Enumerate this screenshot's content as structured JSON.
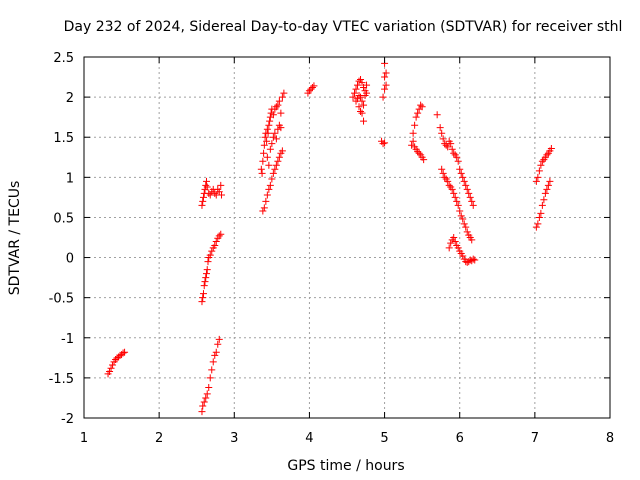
{
  "chart_data": {
    "type": "scatter",
    "title": "Day 232 of 2024, Sidereal Day-to-day VTEC variation (SDTVAR) for receiver sthl",
    "xlabel": "GPS time / hours",
    "ylabel": "SDTVAR / TECUs",
    "xlim": [
      1,
      8
    ],
    "ylim": [
      -2,
      2.5
    ],
    "xticks": [
      1,
      2,
      3,
      4,
      5,
      6,
      7,
      8
    ],
    "yticks": [
      -2,
      -1.5,
      -1,
      -0.5,
      0,
      0.5,
      1,
      1.5,
      2,
      2.5
    ],
    "ytick_labels": [
      "-2",
      "-1.5",
      "-1",
      "-0.5",
      "0",
      "0.5",
      "1",
      "1.5",
      "2",
      "2.5"
    ],
    "grid": true,
    "marker": "+",
    "color": "#ff0000",
    "series": [
      {
        "name": "sthl",
        "points": [
          [
            1.32,
            -1.45
          ],
          [
            1.34,
            -1.42
          ],
          [
            1.36,
            -1.38
          ],
          [
            1.38,
            -1.34
          ],
          [
            1.4,
            -1.3
          ],
          [
            1.42,
            -1.27
          ],
          [
            1.44,
            -1.25
          ],
          [
            1.46,
            -1.24
          ],
          [
            1.48,
            -1.22
          ],
          [
            1.5,
            -1.21
          ],
          [
            1.52,
            -1.19
          ],
          [
            1.54,
            -1.18
          ],
          [
            2.57,
            0.65
          ],
          [
            2.58,
            0.7
          ],
          [
            2.59,
            0.75
          ],
          [
            2.6,
            0.8
          ],
          [
            2.61,
            0.85
          ],
          [
            2.62,
            0.9
          ],
          [
            2.63,
            0.95
          ],
          [
            2.64,
            0.88
          ],
          [
            2.66,
            0.8
          ],
          [
            2.68,
            0.78
          ],
          [
            2.7,
            0.82
          ],
          [
            2.72,
            0.85
          ],
          [
            2.74,
            0.8
          ],
          [
            2.76,
            0.78
          ],
          [
            2.78,
            0.85
          ],
          [
            2.8,
            0.82
          ],
          [
            2.82,
            0.9
          ],
          [
            2.83,
            0.78
          ],
          [
            2.57,
            -0.55
          ],
          [
            2.58,
            -0.5
          ],
          [
            2.59,
            -0.45
          ],
          [
            2.6,
            -0.35
          ],
          [
            2.61,
            -0.3
          ],
          [
            2.62,
            -0.25
          ],
          [
            2.63,
            -0.2
          ],
          [
            2.64,
            -0.15
          ],
          [
            2.65,
            -0.05
          ],
          [
            2.66,
            0.0
          ],
          [
            2.68,
            0.03
          ],
          [
            2.7,
            0.08
          ],
          [
            2.72,
            0.12
          ],
          [
            2.74,
            0.15
          ],
          [
            2.76,
            0.2
          ],
          [
            2.78,
            0.24
          ],
          [
            2.8,
            0.27
          ],
          [
            2.82,
            0.29
          ],
          [
            2.57,
            -1.92
          ],
          [
            2.58,
            -1.85
          ],
          [
            2.6,
            -1.8
          ],
          [
            2.62,
            -1.75
          ],
          [
            2.64,
            -1.7
          ],
          [
            2.66,
            -1.62
          ],
          [
            2.68,
            -1.5
          ],
          [
            2.7,
            -1.4
          ],
          [
            2.72,
            -1.3
          ],
          [
            2.74,
            -1.22
          ],
          [
            2.76,
            -1.18
          ],
          [
            2.78,
            -1.08
          ],
          [
            2.8,
            -1.02
          ],
          [
            3.36,
            1.1
          ],
          [
            3.37,
            1.05
          ],
          [
            3.38,
            1.2
          ],
          [
            3.39,
            1.3
          ],
          [
            3.4,
            1.4
          ],
          [
            3.41,
            1.5
          ],
          [
            3.42,
            1.55
          ],
          [
            3.43,
            1.45
          ],
          [
            3.44,
            1.6
          ],
          [
            3.45,
            1.55
          ],
          [
            3.46,
            1.65
          ],
          [
            3.47,
            1.7
          ],
          [
            3.48,
            1.75
          ],
          [
            3.49,
            1.8
          ],
          [
            3.5,
            1.85
          ],
          [
            3.52,
            1.78
          ],
          [
            3.54,
            1.85
          ],
          [
            3.56,
            1.88
          ],
          [
            3.58,
            1.9
          ],
          [
            3.6,
            1.95
          ],
          [
            3.62,
            1.8
          ],
          [
            3.64,
            2.0
          ],
          [
            3.66,
            2.05
          ],
          [
            3.44,
            1.25
          ],
          [
            3.46,
            1.15
          ],
          [
            3.48,
            1.35
          ],
          [
            3.5,
            1.42
          ],
          [
            3.52,
            1.5
          ],
          [
            3.54,
            1.55
          ],
          [
            3.56,
            1.48
          ],
          [
            3.58,
            1.6
          ],
          [
            3.6,
            1.65
          ],
          [
            3.62,
            1.62
          ],
          [
            3.38,
            0.58
          ],
          [
            3.4,
            0.62
          ],
          [
            3.42,
            0.7
          ],
          [
            3.44,
            0.78
          ],
          [
            3.46,
            0.85
          ],
          [
            3.48,
            0.9
          ],
          [
            3.5,
            0.98
          ],
          [
            3.52,
            1.05
          ],
          [
            3.54,
            1.1
          ],
          [
            3.56,
            1.15
          ],
          [
            3.58,
            1.2
          ],
          [
            3.6,
            1.25
          ],
          [
            3.62,
            1.3
          ],
          [
            3.64,
            1.33
          ],
          [
            3.98,
            2.05
          ],
          [
            4.0,
            2.08
          ],
          [
            4.02,
            2.1
          ],
          [
            4.04,
            2.12
          ],
          [
            4.06,
            2.14
          ],
          [
            4.58,
            2.0
          ],
          [
            4.6,
            2.05
          ],
          [
            4.62,
            2.1
          ],
          [
            4.64,
            2.15
          ],
          [
            4.66,
            2.2
          ],
          [
            4.68,
            2.22
          ],
          [
            4.7,
            2.18
          ],
          [
            4.72,
            2.12
          ],
          [
            4.74,
            2.08
          ],
          [
            4.76,
            2.05
          ],
          [
            4.62,
            1.95
          ],
          [
            4.64,
            1.98
          ],
          [
            4.66,
            2.02
          ],
          [
            4.68,
            2.0
          ],
          [
            4.7,
            1.95
          ],
          [
            4.72,
            1.9
          ],
          [
            4.74,
            2.02
          ],
          [
            4.76,
            2.15
          ],
          [
            4.66,
            1.88
          ],
          [
            4.68,
            1.82
          ],
          [
            4.7,
            1.8
          ],
          [
            4.72,
            1.7
          ],
          [
            4.96,
            1.45
          ],
          [
            4.98,
            1.42
          ],
          [
            5.0,
            1.43
          ],
          [
            4.98,
            2.0
          ],
          [
            5.0,
            2.1
          ],
          [
            5.0,
            2.25
          ],
          [
            5.0,
            2.42
          ],
          [
            5.02,
            2.3
          ],
          [
            5.02,
            2.15
          ],
          [
            5.36,
            1.4
          ],
          [
            5.38,
            1.55
          ],
          [
            5.4,
            1.65
          ],
          [
            5.42,
            1.75
          ],
          [
            5.44,
            1.8
          ],
          [
            5.46,
            1.85
          ],
          [
            5.48,
            1.9
          ],
          [
            5.5,
            1.88
          ],
          [
            5.38,
            1.45
          ],
          [
            5.4,
            1.38
          ],
          [
            5.42,
            1.35
          ],
          [
            5.44,
            1.32
          ],
          [
            5.46,
            1.3
          ],
          [
            5.48,
            1.28
          ],
          [
            5.5,
            1.25
          ],
          [
            5.52,
            1.22
          ],
          [
            5.7,
            1.78
          ],
          [
            5.74,
            1.62
          ],
          [
            5.76,
            1.55
          ],
          [
            5.78,
            1.48
          ],
          [
            5.8,
            1.42
          ],
          [
            5.82,
            1.4
          ],
          [
            5.84,
            1.38
          ],
          [
            5.86,
            1.45
          ],
          [
            5.88,
            1.42
          ],
          [
            5.9,
            1.35
          ],
          [
            5.92,
            1.3
          ],
          [
            5.94,
            1.28
          ],
          [
            5.96,
            1.25
          ],
          [
            5.98,
            1.2
          ],
          [
            6.0,
            1.1
          ],
          [
            6.02,
            1.05
          ],
          [
            6.04,
            1.0
          ],
          [
            6.06,
            0.95
          ],
          [
            6.08,
            0.9
          ],
          [
            6.1,
            0.85
          ],
          [
            6.12,
            0.8
          ],
          [
            6.14,
            0.75
          ],
          [
            6.16,
            0.7
          ],
          [
            6.18,
            0.65
          ],
          [
            5.76,
            1.1
          ],
          [
            5.78,
            1.05
          ],
          [
            5.8,
            1.0
          ],
          [
            5.82,
            0.98
          ],
          [
            5.84,
            0.95
          ],
          [
            5.86,
            0.9
          ],
          [
            5.88,
            0.88
          ],
          [
            5.9,
            0.85
          ],
          [
            5.92,
            0.8
          ],
          [
            5.94,
            0.75
          ],
          [
            5.96,
            0.7
          ],
          [
            5.98,
            0.65
          ],
          [
            6.0,
            0.58
          ],
          [
            6.02,
            0.52
          ],
          [
            6.04,
            0.48
          ],
          [
            6.06,
            0.42
          ],
          [
            6.08,
            0.38
          ],
          [
            6.1,
            0.32
          ],
          [
            6.12,
            0.28
          ],
          [
            6.14,
            0.25
          ],
          [
            6.16,
            0.22
          ],
          [
            5.86,
            0.12
          ],
          [
            5.88,
            0.18
          ],
          [
            5.9,
            0.22
          ],
          [
            5.92,
            0.25
          ],
          [
            5.94,
            0.2
          ],
          [
            5.96,
            0.15
          ],
          [
            5.98,
            0.12
          ],
          [
            6.0,
            0.08
          ],
          [
            6.02,
            0.05
          ],
          [
            6.04,
            0.02
          ],
          [
            6.06,
            -0.02
          ],
          [
            6.08,
            -0.05
          ],
          [
            6.1,
            -0.06
          ],
          [
            6.12,
            -0.05
          ],
          [
            6.14,
            -0.03
          ],
          [
            6.16,
            -0.04
          ],
          [
            6.18,
            -0.02
          ],
          [
            6.2,
            -0.03
          ],
          [
            7.02,
            0.38
          ],
          [
            7.04,
            0.42
          ],
          [
            7.06,
            0.5
          ],
          [
            7.08,
            0.55
          ],
          [
            7.1,
            0.65
          ],
          [
            7.12,
            0.72
          ],
          [
            7.14,
            0.8
          ],
          [
            7.16,
            0.85
          ],
          [
            7.18,
            0.9
          ],
          [
            7.2,
            0.95
          ],
          [
            7.02,
            0.95
          ],
          [
            7.04,
            1.0
          ],
          [
            7.06,
            1.08
          ],
          [
            7.08,
            1.15
          ],
          [
            7.1,
            1.2
          ],
          [
            7.12,
            1.22
          ],
          [
            7.14,
            1.25
          ],
          [
            7.16,
            1.28
          ],
          [
            7.18,
            1.3
          ],
          [
            7.2,
            1.33
          ],
          [
            7.22,
            1.36
          ]
        ]
      }
    ]
  }
}
